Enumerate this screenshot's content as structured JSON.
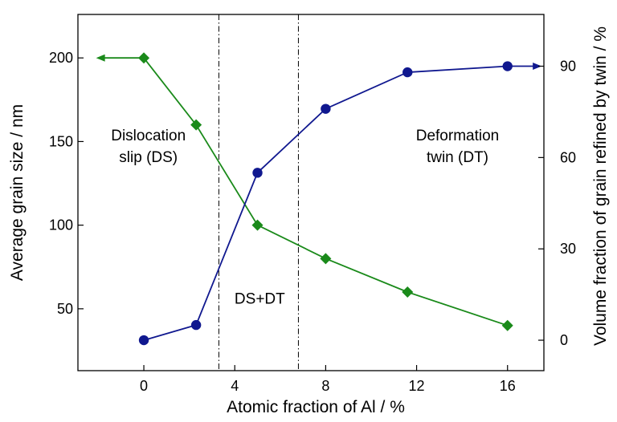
{
  "chart_data": {
    "type": "line",
    "xlabel": "Atomic fraction of Al / %",
    "ylabel_left": "Average grain size / nm",
    "ylabel_right": "Volume fraction of grain refined by twin / %",
    "xlim": [
      -2.9,
      17.6
    ],
    "ylim_left": [
      13,
      226
    ],
    "ylim_right": [
      -10,
      107
    ],
    "x_ticks": [
      0,
      4,
      8,
      12,
      16
    ],
    "y_left_ticks": [
      50,
      100,
      150,
      200
    ],
    "y_right_ticks": [
      0,
      30,
      60,
      90
    ],
    "vertical_lines": [
      3.3,
      6.8
    ],
    "grid": false,
    "series": [
      {
        "axis": "left",
        "color": "#1a8a1a",
        "marker": "diamond",
        "x": [
          0,
          2.3,
          5,
          8,
          11.6,
          16
        ],
        "y": [
          200,
          160,
          100,
          80,
          60,
          40
        ],
        "arrow_to_x": -2.1
      },
      {
        "axis": "right",
        "color": "#10188f",
        "marker": "circle",
        "x": [
          0,
          2.3,
          5,
          8,
          11.6,
          16
        ],
        "y": [
          0,
          5,
          55,
          76,
          88,
          90
        ],
        "arrow_to_x": 17.5
      }
    ],
    "annotations": [
      {
        "lines": [
          "Dislocation",
          "slip (DS)"
        ],
        "x": 0.2,
        "y_left": 147
      },
      {
        "lines": [
          "DS+DT"
        ],
        "x": 5.1,
        "y_left": 56
      },
      {
        "lines": [
          "Deformation",
          "twin (DT)"
        ],
        "x": 13.8,
        "y_left": 147
      }
    ]
  }
}
